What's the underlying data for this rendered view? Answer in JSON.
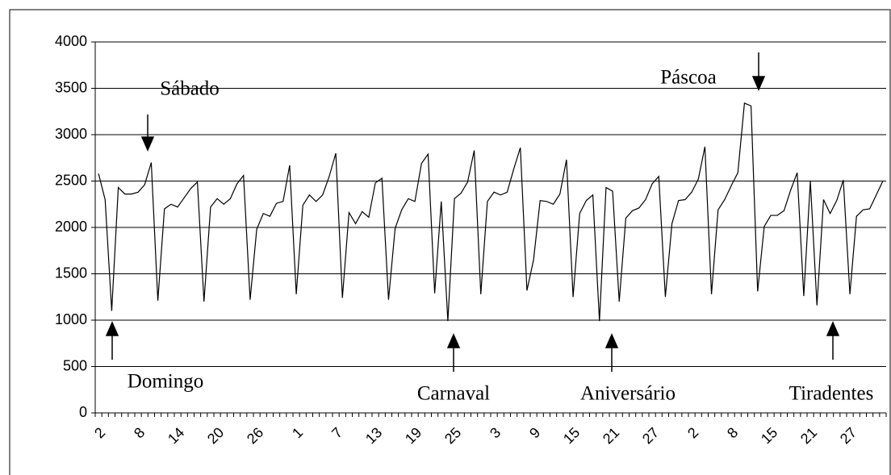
{
  "chart_data": {
    "type": "line",
    "annotations": [
      "Sábado",
      "Domingo",
      "Carnaval",
      "Aniversário",
      "Páscoa",
      "Tiradentes"
    ],
    "categories": [
      "2",
      null,
      null,
      null,
      null,
      null,
      "8",
      null,
      null,
      null,
      null,
      null,
      "14",
      null,
      null,
      null,
      null,
      null,
      "20",
      null,
      null,
      null,
      null,
      null,
      "26",
      null,
      null,
      null,
      null,
      null,
      "1",
      null,
      null,
      null,
      null,
      null,
      "7",
      null,
      null,
      null,
      null,
      null,
      "13",
      null,
      null,
      null,
      null,
      null,
      "19",
      null,
      null,
      null,
      null,
      null,
      "25",
      null,
      null,
      null,
      null,
      null,
      "3",
      null,
      null,
      null,
      null,
      null,
      "9",
      null,
      null,
      null,
      null,
      null,
      "15",
      null,
      null,
      null,
      null,
      null,
      "21",
      null,
      null,
      null,
      null,
      null,
      "27",
      null,
      null,
      null,
      null,
      null,
      "2",
      null,
      null,
      null,
      null,
      null,
      "8",
      null,
      null,
      null,
      null,
      null,
      "15",
      null,
      null,
      null,
      null,
      null,
      "21",
      null,
      null,
      null,
      null,
      null,
      "27",
      null,
      null,
      null,
      null,
      null
    ],
    "values": [
      2580,
      2300,
      1100,
      2430,
      2360,
      2360,
      2380,
      2460,
      2700,
      1210,
      2200,
      2250,
      2220,
      2320,
      2420,
      2490,
      1200,
      2220,
      2310,
      2250,
      2310,
      2470,
      2560,
      1220,
      1980,
      2150,
      2120,
      2260,
      2280,
      2670,
      1280,
      2240,
      2350,
      2280,
      2350,
      2550,
      2800,
      1240,
      2160,
      2040,
      2170,
      2110,
      2480,
      2530,
      1220,
      1990,
      2190,
      2310,
      2280,
      2690,
      2790,
      1290,
      2280,
      990,
      2310,
      2370,
      2490,
      2830,
      1280,
      2280,
      2380,
      2350,
      2380,
      2630,
      2860,
      1320,
      1650,
      2290,
      2280,
      2250,
      2360,
      2730,
      1250,
      2150,
      2290,
      2350,
      990,
      2430,
      2390,
      1200,
      2100,
      2180,
      2210,
      2300,
      2470,
      2550,
      1250,
      2040,
      2290,
      2300,
      2380,
      2520,
      2870,
      1280,
      2190,
      2300,
      2450,
      2590,
      3340,
      3310,
      1310,
      2010,
      2130,
      2130,
      2180,
      2400,
      2590,
      1260,
      2500,
      1160,
      2300,
      2150,
      2290,
      2510,
      1280,
      2120,
      2190,
      2200,
      2350,
      2500
    ],
    "color": "#000000",
    "ylim": [
      0,
      4000
    ],
    "yticks": [
      0,
      500,
      1000,
      1500,
      2000,
      2500,
      3000,
      3500,
      4000
    ],
    "grid": true
  }
}
